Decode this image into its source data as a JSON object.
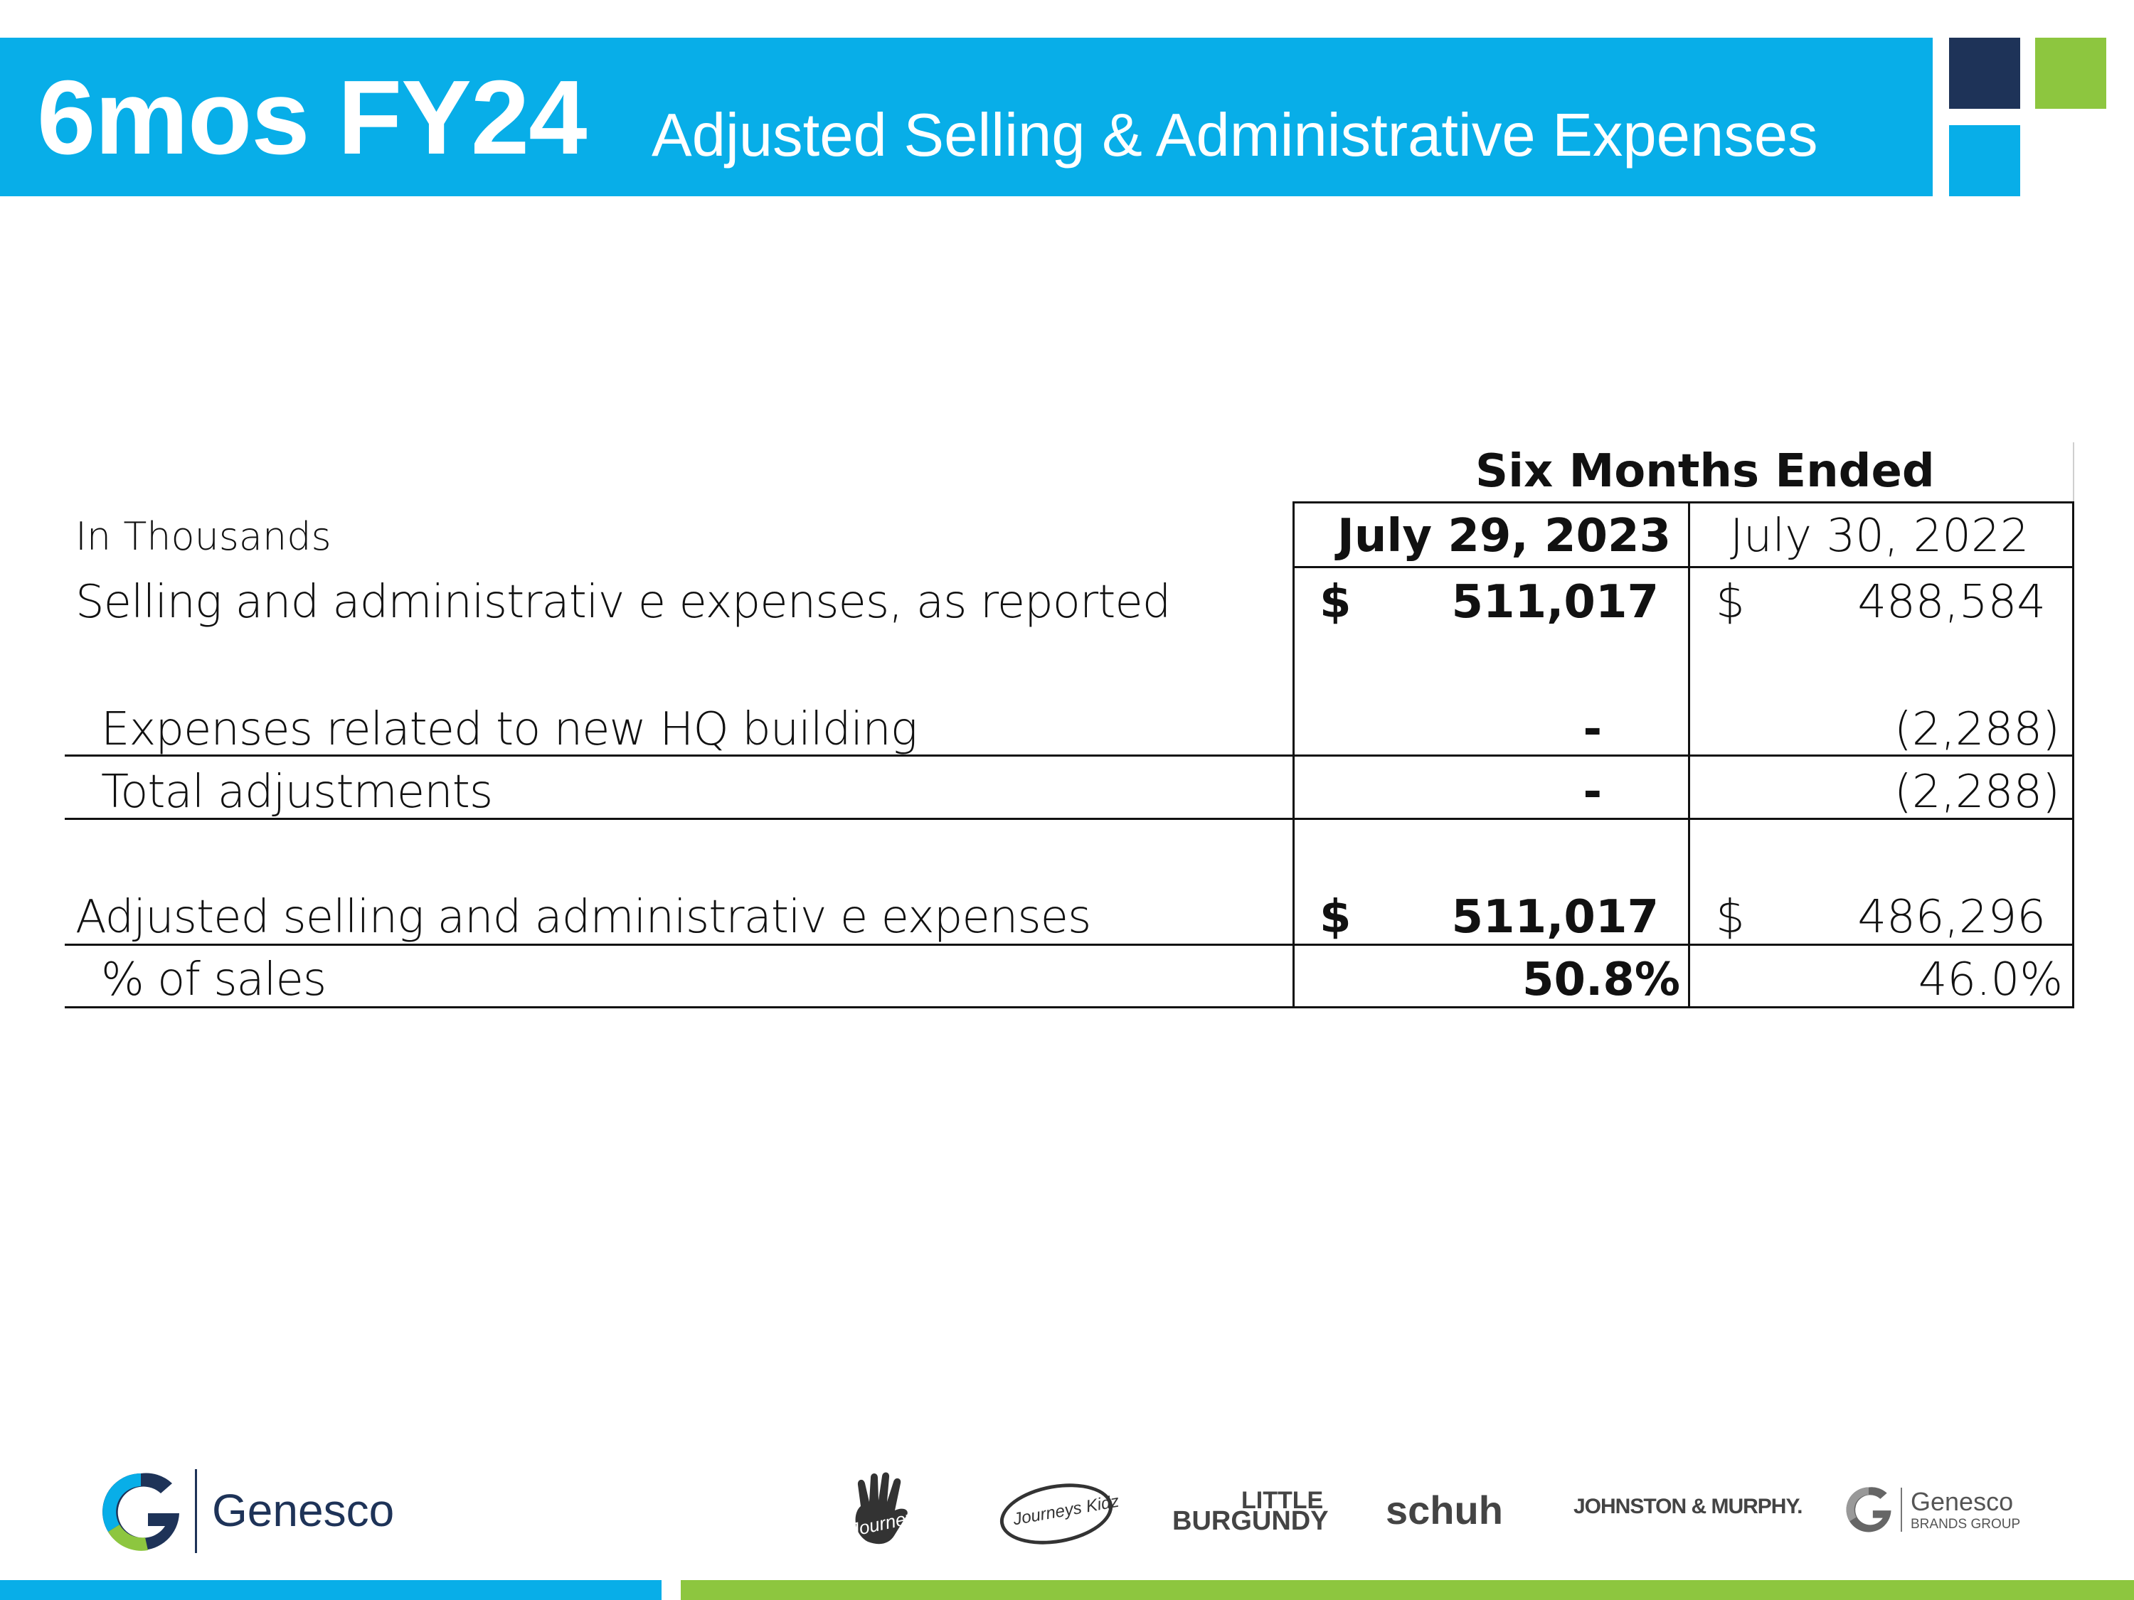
{
  "header": {
    "title_main": "6mos FY24",
    "title_sub": "Adjusted Selling & Administrative Expenses",
    "colors": {
      "banner": "#08aee8",
      "navy": "#1e3358",
      "green": "#8dc63f"
    }
  },
  "table": {
    "units_label": "In Thousands",
    "period_header": "Six Months Ended",
    "columns": [
      "July 29, 2023",
      "July 30, 2022"
    ],
    "rows": [
      {
        "label": "Selling and administrativ e expenses, as reported",
        "cur1": "$",
        "val1": "511,017",
        "cur2": "$",
        "val2": "488,584"
      },
      {
        "label": "Expenses related to new HQ building",
        "val1": "-",
        "val2": "(2,288)"
      },
      {
        "label": "Total adjustments",
        "val1": "-",
        "val2": "(2,288)"
      },
      {
        "label": "Adjusted selling and administrativ e expenses",
        "cur1": "$",
        "val1": "511,017",
        "cur2": "$",
        "val2": "486,296"
      },
      {
        "label": "% of sales",
        "val1": "50.8%",
        "val2": "46.0%"
      }
    ]
  },
  "footer": {
    "company": "Genesco",
    "brands": [
      "Journeys",
      "Journeys Kidz",
      "LITTLE",
      "BURGUNDY",
      "schuh",
      "JOHNSTON & MURPHY."
    ],
    "group_logo": {
      "name": "Genesco",
      "sub": "BRANDS GROUP"
    }
  }
}
